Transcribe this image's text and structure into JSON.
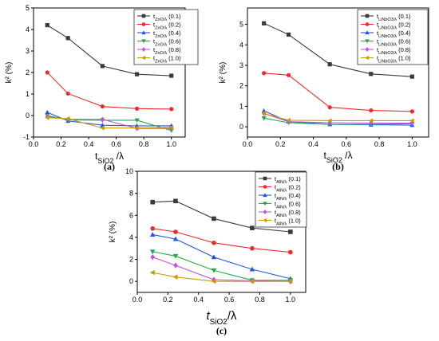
{
  "colors": [
    "#3a3a3a",
    "#ee2b2b",
    "#2255ee",
    "#22aa44",
    "#bb55dd",
    "#cc9900"
  ],
  "markers": [
    "square",
    "circle",
    "triangle-up",
    "triangle-down",
    "diamond",
    "triangle-left"
  ],
  "chart_data": [
    {
      "type": "line",
      "panel_label": "(a)",
      "xlabel_main": "t",
      "xlabel_sub": "SiO2",
      "xlabel_tail": " /λ",
      "ylabel": "k² (%)",
      "xlim": [
        0,
        1.1
      ],
      "ylim": [
        -1,
        5
      ],
      "xticks": [
        "0.0",
        "0.2",
        "0.4",
        "0.6",
        "0.8",
        "1.0"
      ],
      "yticks": [
        "-1",
        "0",
        "1",
        "2",
        "3",
        "4",
        "5"
      ],
      "legend_position": "top-right",
      "x": [
        0.1,
        0.25,
        0.5,
        0.75,
        1.0
      ],
      "series": [
        {
          "name_main": "t",
          "name_sub": "ZnO/λ",
          "name_tail": " (0.1)",
          "values": [
            4.2,
            3.6,
            2.3,
            1.92,
            1.85
          ]
        },
        {
          "name_main": "t",
          "name_sub": "ZnO/λ",
          "name_tail": " (0.2)",
          "values": [
            2.0,
            1.02,
            0.42,
            0.32,
            0.3
          ]
        },
        {
          "name_main": "t",
          "name_sub": "ZnO/λ",
          "name_tail": " (0.4)",
          "values": [
            0.15,
            -0.25,
            -0.45,
            -0.48,
            -0.48
          ]
        },
        {
          "name_main": "t",
          "name_sub": "ZnO/λ",
          "name_tail": " (0.6)",
          "values": [
            0.0,
            -0.2,
            -0.22,
            -0.22,
            -0.7
          ]
        },
        {
          "name_main": "t",
          "name_sub": "ZnO/λ",
          "name_tail": " (0.8)",
          "values": [
            -0.05,
            -0.18,
            -0.18,
            -0.6,
            -0.6
          ]
        },
        {
          "name_main": "t",
          "name_sub": "ZnO/λ",
          "name_tail": " (1.0)",
          "values": [
            -0.1,
            -0.15,
            -0.58,
            -0.58,
            -0.55
          ]
        }
      ]
    },
    {
      "type": "line",
      "panel_label": "(b)",
      "xlabel_main": "t",
      "xlabel_sub": "SiO2",
      "xlabel_tail": " /λ",
      "ylabel": "k² (%)",
      "xlim": [
        0,
        1.1
      ],
      "ylim": [
        -0.5,
        5.8
      ],
      "xticks": [
        "0.0",
        "0.2",
        "0.4",
        "0.6",
        "0.8",
        "1.0"
      ],
      "yticks": [
        "0",
        "1",
        "2",
        "3",
        "4",
        "5"
      ],
      "legend_position": "top-right",
      "x": [
        0.1,
        0.25,
        0.5,
        0.75,
        1.0
      ],
      "series": [
        {
          "name_main": "t",
          "name_sub": "LiNbO3/λ",
          "name_tail": " (0.1)",
          "values": [
            5.05,
            4.5,
            3.05,
            2.58,
            2.45
          ]
        },
        {
          "name_main": "t",
          "name_sub": "LiNbO3/λ",
          "name_tail": " (0.2)",
          "values": [
            2.62,
            2.52,
            0.95,
            0.8,
            0.75
          ]
        },
        {
          "name_main": "t",
          "name_sub": "LiNbO3/λ",
          "name_tail": " (0.4)",
          "values": [
            0.78,
            0.25,
            0.12,
            0.1,
            0.08
          ]
        },
        {
          "name_main": "t",
          "name_sub": "LiNbO3/λ",
          "name_tail": " (0.6)",
          "values": [
            0.42,
            0.2,
            0.12,
            0.12,
            0.15
          ]
        },
        {
          "name_main": "t",
          "name_sub": "LiNbO3/λ",
          "name_tail": " (0.8)",
          "values": [
            0.65,
            0.25,
            0.2,
            0.18,
            0.18
          ]
        },
        {
          "name_main": "t",
          "name_sub": "LiNbO3/λ",
          "name_tail": " (1.0)",
          "values": [
            0.65,
            0.32,
            0.3,
            0.3,
            0.3
          ]
        }
      ]
    },
    {
      "type": "line",
      "panel_label": "(c)",
      "xlabel_main": "t",
      "xlabel_sub": "SiO2",
      "xlabel_tail": "/λ",
      "ylabel": "k² (%)",
      "xlim": [
        0,
        1.1
      ],
      "ylim": [
        -1,
        10
      ],
      "xticks": [
        "0.0",
        "0.2",
        "0.4",
        "0.6",
        "0.8",
        "1.0"
      ],
      "yticks": [
        "0",
        "2",
        "4",
        "6",
        "8",
        "10"
      ],
      "legend_position": "top-right",
      "x": [
        0.1,
        0.25,
        0.5,
        0.75,
        1.0
      ],
      "series": [
        {
          "name_main": "t",
          "name_sub": "AlN/λ",
          "name_tail": " (0.1)",
          "values": [
            7.2,
            7.3,
            5.7,
            4.85,
            4.5
          ]
        },
        {
          "name_main": "t",
          "name_sub": "AlN/λ",
          "name_tail": " (0.2)",
          "values": [
            4.8,
            4.5,
            3.5,
            3.0,
            2.65
          ]
        },
        {
          "name_main": "t",
          "name_sub": "AlN/λ",
          "name_tail": " (0.4)",
          "values": [
            4.25,
            3.85,
            2.2,
            1.1,
            0.25
          ]
        },
        {
          "name_main": "t",
          "name_sub": "AlN/λ",
          "name_tail": " (0.6)",
          "values": [
            2.7,
            2.3,
            1.0,
            0.1,
            0.1
          ]
        },
        {
          "name_main": "t",
          "name_sub": "AlN/λ",
          "name_tail": " (0.8)",
          "values": [
            2.2,
            1.45,
            0.15,
            0.05,
            0.0
          ]
        },
        {
          "name_main": "t",
          "name_sub": "AlN/λ",
          "name_tail": " (1.0)",
          "values": [
            0.8,
            0.4,
            0.0,
            0.0,
            0.0
          ]
        }
      ]
    }
  ]
}
